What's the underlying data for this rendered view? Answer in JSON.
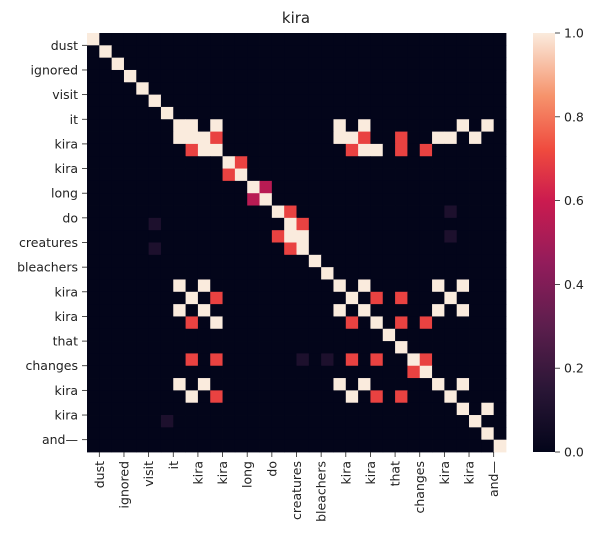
{
  "chart_data": {
    "type": "heatmap",
    "title": "kira",
    "xlabel": "",
    "ylabel": "",
    "tokens": [
      "dust",
      "ignored",
      "visit",
      "it",
      "kira",
      "kira",
      "long",
      "do",
      "creatures",
      "bleachers",
      "kira",
      "kira",
      "that",
      "changes",
      "kira",
      "kira",
      "and—"
    ],
    "colorbar": {
      "min": 0.0,
      "max": 1.0,
      "ticks": [
        "0.0",
        "0.2",
        "0.4",
        "0.6",
        "0.8",
        "1.0"
      ]
    },
    "colormap": "rocket",
    "values": [
      [
        1,
        0,
        0,
        0,
        0,
        0,
        0,
        0,
        0,
        0,
        0,
        0,
        0,
        0,
        0,
        0,
        0,
        0,
        0,
        0,
        0,
        0,
        0,
        0,
        0,
        0,
        0,
        0,
        0,
        0,
        0,
        0,
        0,
        0
      ],
      [
        0,
        1,
        0,
        0,
        0,
        0,
        0,
        0,
        0,
        0,
        0,
        0,
        0,
        0,
        0,
        0,
        0,
        0,
        0,
        0,
        0,
        0,
        0,
        0,
        0,
        0,
        0,
        0,
        0,
        0,
        0,
        0,
        0,
        0
      ],
      [
        0,
        0,
        1,
        0,
        0,
        0,
        0,
        0,
        0,
        0,
        0,
        0,
        0,
        0,
        0,
        0,
        0,
        0,
        0,
        0,
        0,
        0,
        0,
        0,
        0,
        0,
        0,
        0,
        0,
        0,
        0,
        0,
        0,
        0
      ],
      [
        0,
        0,
        0,
        1,
        0,
        0,
        0,
        0,
        0,
        0,
        0,
        0,
        0,
        0,
        0,
        0,
        0,
        0,
        0,
        0,
        0,
        0,
        0,
        0,
        0,
        0,
        0,
        0,
        0,
        0,
        0,
        0,
        0,
        0
      ],
      [
        0,
        0,
        0,
        0,
        1,
        0,
        0,
        0,
        0,
        0,
        0,
        0,
        0,
        0,
        0,
        0,
        0,
        0,
        0,
        0,
        0,
        0,
        0,
        0,
        0,
        0,
        0,
        0,
        0,
        0,
        0,
        0,
        0,
        0
      ],
      [
        0,
        0,
        0,
        0,
        0,
        1,
        0,
        0,
        0,
        0,
        0,
        0,
        0,
        0,
        0,
        0,
        0,
        0,
        0,
        0,
        0,
        0,
        0,
        0,
        0,
        0,
        0,
        0,
        0,
        0,
        0,
        0,
        0,
        0
      ],
      [
        0,
        0,
        0,
        0,
        0,
        0,
        1,
        0,
        0,
        0,
        0,
        0,
        0,
        0,
        0,
        0,
        0,
        0,
        0,
        0,
        0,
        0,
        0,
        0,
        0,
        0,
        0,
        0,
        0,
        0,
        0,
        0,
        0,
        0
      ],
      [
        0,
        0,
        0,
        0,
        0,
        0,
        0,
        1,
        1,
        0,
        1,
        0,
        0,
        0,
        0,
        0,
        0,
        0,
        0,
        0,
        1,
        0,
        1,
        0,
        0,
        0,
        0,
        0,
        0,
        0,
        1,
        0,
        1,
        0
      ],
      [
        0,
        0,
        0,
        0,
        0,
        0,
        0,
        1,
        1,
        1,
        0.7,
        0,
        0,
        0,
        0,
        0,
        0,
        0,
        0,
        0,
        1,
        1,
        0.7,
        0,
        0,
        0.7,
        0,
        0,
        1,
        1,
        0,
        1,
        0,
        0
      ],
      [
        0,
        0,
        0,
        0,
        0,
        0,
        0,
        0,
        0.7,
        1,
        1,
        0,
        0,
        0,
        0,
        0,
        0,
        0,
        0,
        0,
        0,
        0.7,
        1,
        1,
        0,
        0.7,
        0,
        0.7,
        0,
        0,
        0,
        0,
        0,
        0
      ],
      [
        0,
        0,
        0,
        0,
        0,
        0,
        0,
        0,
        0,
        0,
        0,
        1,
        0.7,
        0,
        0,
        0,
        0,
        0,
        0,
        0,
        0,
        0,
        0,
        0,
        0,
        0,
        0,
        0,
        0,
        0,
        0,
        0,
        0,
        0
      ],
      [
        0,
        0,
        0,
        0,
        0,
        0,
        0,
        0,
        0,
        0,
        0,
        0.7,
        1,
        0,
        0,
        0,
        0,
        0,
        0,
        0,
        0,
        0,
        0,
        0,
        0,
        0,
        0,
        0,
        0,
        0,
        0,
        0,
        0,
        0
      ],
      [
        0,
        0,
        0,
        0,
        0,
        0,
        0,
        0,
        0,
        0,
        0,
        0,
        0,
        1,
        0.55,
        0,
        0,
        0,
        0,
        0,
        0,
        0,
        0,
        0,
        0,
        0,
        0,
        0,
        0,
        0,
        0,
        0,
        0,
        0
      ],
      [
        0,
        0,
        0,
        0,
        0,
        0,
        0,
        0,
        0,
        0,
        0,
        0,
        0,
        0.55,
        1,
        0,
        0,
        0,
        0,
        0,
        0,
        0,
        0,
        0,
        0,
        0,
        0,
        0,
        0,
        0,
        0,
        0,
        0,
        0
      ],
      [
        0,
        0,
        0,
        0,
        0,
        0,
        0,
        0,
        0,
        0,
        0,
        0,
        0,
        0,
        0,
        1,
        0.7,
        0,
        0,
        0,
        0,
        0,
        0,
        0,
        0,
        0,
        0,
        0,
        0,
        0.1,
        0,
        0,
        0,
        0
      ],
      [
        0,
        0,
        0,
        0,
        0,
        0.1,
        0,
        0,
        0,
        0,
        0,
        0,
        0,
        0,
        0,
        0,
        1,
        0.7,
        0,
        0,
        0,
        0,
        0,
        0,
        0,
        0,
        0,
        0,
        0,
        0,
        0,
        0,
        0,
        0
      ],
      [
        0,
        0,
        0,
        0,
        0,
        0,
        0,
        0,
        0,
        0,
        0,
        0,
        0,
        0,
        0,
        0.7,
        1,
        1,
        0,
        0,
        0,
        0,
        0,
        0,
        0,
        0,
        0,
        0,
        0,
        0.1,
        0,
        0,
        0,
        0
      ],
      [
        0,
        0,
        0,
        0,
        0,
        0.1,
        0,
        0,
        0,
        0,
        0,
        0,
        0,
        0,
        0,
        0,
        0.7,
        1,
        0,
        0,
        0,
        0,
        0,
        0,
        0,
        0,
        0,
        0,
        0,
        0,
        0,
        0,
        0,
        0
      ],
      [
        0,
        0,
        0,
        0,
        0,
        0,
        0,
        0,
        0,
        0,
        0,
        0,
        0,
        0,
        0,
        0,
        0,
        0,
        1,
        0,
        0,
        0,
        0,
        0,
        0,
        0,
        0,
        0,
        0,
        0,
        0,
        0,
        0,
        0
      ],
      [
        0,
        0,
        0,
        0,
        0,
        0,
        0,
        0,
        0,
        0,
        0,
        0,
        0,
        0,
        0,
        0,
        0,
        0,
        0,
        1,
        0,
        0,
        0,
        0,
        0,
        0,
        0,
        0,
        0,
        0,
        0,
        0,
        0,
        0
      ],
      [
        0,
        0,
        0,
        0,
        0,
        0,
        0,
        1,
        0,
        1,
        0,
        0,
        0,
        0,
        0,
        0,
        0,
        0,
        0,
        0,
        1,
        0,
        1,
        0,
        0,
        0,
        0,
        0,
        1,
        0,
        1,
        0,
        0,
        0
      ],
      [
        0,
        0,
        0,
        0,
        0,
        0,
        0,
        0,
        1,
        0,
        0.7,
        0,
        0,
        0,
        0,
        0,
        0,
        0,
        0,
        0,
        0,
        1,
        0,
        0.7,
        0,
        0.7,
        0,
        0,
        0,
        1,
        0,
        0,
        0,
        0
      ],
      [
        0,
        0,
        0,
        0,
        0,
        0,
        0,
        1,
        0,
        1,
        0,
        0,
        0,
        0,
        0,
        0,
        0,
        0,
        0,
        0,
        1,
        0,
        1,
        0,
        0,
        0,
        0,
        0,
        1,
        0,
        1,
        0,
        0,
        0
      ],
      [
        0,
        0,
        0,
        0,
        0,
        0,
        0,
        0,
        0.7,
        0,
        1,
        0,
        0,
        0,
        0,
        0,
        0,
        0,
        0,
        0,
        0,
        0.7,
        0,
        1,
        0,
        0.7,
        0,
        0.7,
        0,
        0,
        0,
        0,
        0,
        0
      ],
      [
        0,
        0,
        0,
        0,
        0,
        0,
        0,
        0,
        0,
        0,
        0,
        0,
        0,
        0,
        0,
        0,
        0,
        0,
        0,
        0,
        0,
        0,
        0,
        0,
        1,
        0,
        0,
        0,
        0,
        0,
        0,
        0,
        0,
        0
      ],
      [
        0,
        0,
        0,
        0,
        0,
        0,
        0,
        0,
        0,
        0,
        0,
        0,
        0,
        0,
        0,
        0,
        0,
        0,
        0,
        0,
        0,
        0,
        0,
        0,
        0,
        1,
        0,
        0,
        0,
        0,
        0,
        0,
        0,
        0
      ],
      [
        0,
        0,
        0,
        0,
        0,
        0,
        0,
        0,
        0.7,
        0,
        0.7,
        0,
        0,
        0,
        0,
        0,
        0,
        0.1,
        0,
        0.1,
        0,
        0.7,
        0,
        0.7,
        0,
        0,
        1,
        0.7,
        0,
        0,
        0,
        0,
        0,
        0
      ],
      [
        0,
        0,
        0,
        0,
        0,
        0,
        0,
        0,
        0,
        0,
        0,
        0,
        0,
        0,
        0,
        0,
        0,
        0,
        0,
        0,
        0,
        0,
        0,
        0,
        0,
        0,
        0.7,
        1,
        0,
        0,
        0,
        0,
        0,
        0
      ],
      [
        0,
        0,
        0,
        0,
        0,
        0,
        0,
        1,
        0,
        1,
        0,
        0,
        0,
        0,
        0,
        0,
        0,
        0,
        0,
        0,
        1,
        0,
        1,
        0,
        0,
        0,
        0,
        0,
        1,
        0,
        1,
        0,
        0,
        0
      ],
      [
        0,
        0,
        0,
        0,
        0,
        0,
        0,
        0,
        1,
        0,
        0.7,
        0,
        0,
        0,
        0,
        0,
        0,
        0,
        0,
        0,
        0,
        1,
        0,
        0.7,
        0,
        0.7,
        0,
        0,
        0,
        1,
        0,
        0,
        0,
        0
      ],
      [
        0,
        0,
        0,
        0,
        0,
        0,
        0,
        0,
        0,
        0,
        0,
        0,
        0,
        0,
        0,
        0,
        0,
        0,
        0,
        0,
        0,
        0,
        0,
        0,
        0,
        0,
        0,
        0,
        0,
        0,
        1,
        0,
        1,
        0
      ],
      [
        0,
        0,
        0,
        0,
        0,
        0,
        0.1,
        0,
        0,
        0,
        0,
        0,
        0,
        0,
        0,
        0,
        0,
        0,
        0,
        0,
        0,
        0,
        0,
        0,
        0,
        0,
        0,
        0,
        0,
        0,
        0,
        1,
        0,
        0
      ],
      [
        0,
        0,
        0,
        0,
        0,
        0,
        0,
        0,
        0,
        0,
        0,
        0,
        0,
        0,
        0,
        0,
        0,
        0,
        0,
        0,
        0,
        0,
        0,
        0,
        0,
        0,
        0,
        0,
        0,
        0,
        0,
        0,
        1,
        0
      ],
      [
        0,
        0,
        0,
        0,
        0,
        0,
        0,
        0,
        0,
        0,
        0,
        0,
        0,
        0,
        0,
        0,
        0,
        0,
        0,
        0,
        0,
        0,
        0,
        0,
        0,
        0,
        0,
        0,
        0,
        0,
        0,
        0,
        0,
        1
      ]
    ]
  }
}
